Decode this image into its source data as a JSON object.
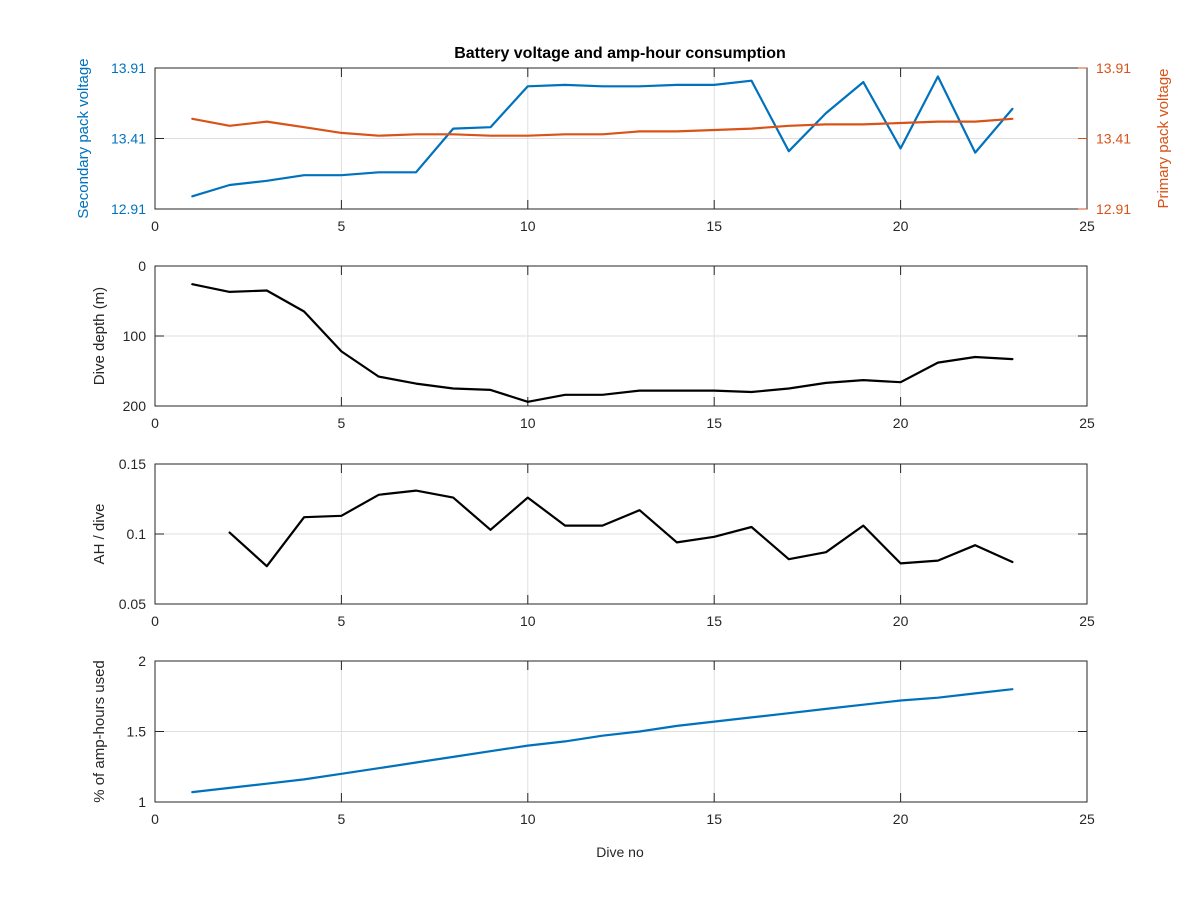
{
  "chart_data": [
    {
      "type": "line",
      "title": "Battery voltage and amp-hour consumption",
      "xlabel": "",
      "ylabel_left": "Secondary pack voltage",
      "ylabel_right": "Primary pack voltage",
      "xlim": [
        0,
        25
      ],
      "ylim": [
        12.91,
        13.91
      ],
      "xticks": [
        "0",
        "5",
        "10",
        "15",
        "20",
        "25"
      ],
      "yticks_left": [
        "12.91",
        "13.41",
        "13.91"
      ],
      "yticks_right": [
        "12.91",
        "13.41",
        "13.91"
      ],
      "grid": true,
      "series": [
        {
          "color": "#0072BD",
          "axis": "left",
          "x": [
            1,
            2,
            3,
            4,
            5,
            6,
            7,
            8,
            9,
            10,
            11,
            12,
            13,
            14,
            15,
            16,
            17,
            18,
            19,
            20,
            21,
            22,
            23
          ],
          "values": [
            13.0,
            13.08,
            13.11,
            13.15,
            13.15,
            13.17,
            13.17,
            13.48,
            13.49,
            13.78,
            13.79,
            13.78,
            13.78,
            13.79,
            13.79,
            13.82,
            13.32,
            13.59,
            13.81,
            13.34,
            13.85,
            13.31,
            13.62
          ]
        },
        {
          "color": "#D95319",
          "axis": "right",
          "x": [
            1,
            2,
            3,
            4,
            5,
            6,
            7,
            8,
            9,
            10,
            11,
            12,
            13,
            14,
            15,
            16,
            17,
            18,
            19,
            20,
            21,
            22,
            23
          ],
          "values": [
            13.55,
            13.5,
            13.53,
            13.49,
            13.45,
            13.43,
            13.44,
            13.44,
            13.43,
            13.43,
            13.44,
            13.44,
            13.46,
            13.46,
            13.47,
            13.48,
            13.5,
            13.51,
            13.51,
            13.52,
            13.53,
            13.53,
            13.55
          ]
        }
      ]
    },
    {
      "type": "line",
      "title": "",
      "xlabel": "",
      "ylabel": "Dive depth (m)",
      "xlim": [
        0,
        25
      ],
      "ylim": [
        0,
        200
      ],
      "y_reversed": true,
      "xticks": [
        "0",
        "5",
        "10",
        "15",
        "20",
        "25"
      ],
      "yticks": [
        "0",
        "100",
        "200"
      ],
      "grid": true,
      "series": [
        {
          "color": "#000000",
          "x": [
            1,
            2,
            3,
            4,
            5,
            6,
            7,
            8,
            9,
            10,
            11,
            12,
            13,
            14,
            15,
            16,
            17,
            18,
            19,
            20,
            21,
            22,
            23
          ],
          "values": [
            26,
            37,
            35,
            65,
            122,
            158,
            168,
            175,
            177,
            194,
            184,
            184,
            178,
            178,
            178,
            180,
            175,
            167,
            163,
            166,
            138,
            130,
            133
          ]
        }
      ]
    },
    {
      "type": "line",
      "title": "",
      "xlabel": "",
      "ylabel": "AH / dive",
      "xlim": [
        0,
        25
      ],
      "ylim": [
        0.05,
        0.15
      ],
      "xticks": [
        "0",
        "5",
        "10",
        "15",
        "20",
        "25"
      ],
      "yticks": [
        "0.05",
        "0.1",
        "0.15"
      ],
      "grid": true,
      "series": [
        {
          "color": "#000000",
          "x": [
            2,
            3,
            4,
            5,
            6,
            7,
            8,
            9,
            10,
            11,
            12,
            13,
            14,
            15,
            16,
            17,
            18,
            19,
            20,
            21,
            22,
            23
          ],
          "values": [
            0.101,
            0.077,
            0.112,
            0.113,
            0.128,
            0.131,
            0.126,
            0.103,
            0.126,
            0.106,
            0.106,
            0.117,
            0.094,
            0.098,
            0.105,
            0.082,
            0.087,
            0.106,
            0.079,
            0.081,
            0.092,
            0.08
          ]
        }
      ]
    },
    {
      "type": "line",
      "title": "",
      "xlabel": "Dive no",
      "ylabel": "% of amp-hours used",
      "xlim": [
        0,
        25
      ],
      "ylim": [
        1,
        2
      ],
      "xticks": [
        "0",
        "5",
        "10",
        "15",
        "20",
        "25"
      ],
      "yticks": [
        "1",
        "1.5",
        "2"
      ],
      "grid": true,
      "series": [
        {
          "color": "#0072BD",
          "x": [
            1,
            2,
            3,
            4,
            5,
            6,
            7,
            8,
            9,
            10,
            11,
            12,
            13,
            14,
            15,
            16,
            17,
            18,
            19,
            20,
            21,
            22,
            23
          ],
          "values": [
            1.07,
            1.1,
            1.13,
            1.16,
            1.2,
            1.24,
            1.28,
            1.32,
            1.36,
            1.4,
            1.43,
            1.47,
            1.5,
            1.54,
            1.57,
            1.6,
            1.63,
            1.66,
            1.69,
            1.72,
            1.74,
            1.77,
            1.8
          ]
        }
      ]
    }
  ]
}
